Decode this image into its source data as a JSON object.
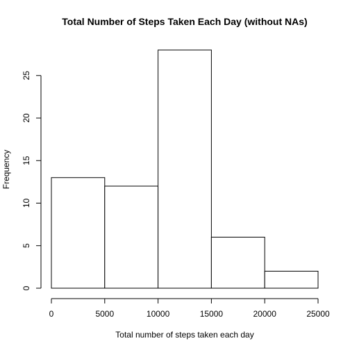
{
  "chart_data": {
    "type": "bar",
    "title": "Total Number of Steps Taken Each Day (without NAs)",
    "xlabel": "Total number of steps taken each day",
    "ylabel": "Frequency",
    "bins": [
      {
        "start": 0,
        "end": 5000,
        "count": 13
      },
      {
        "start": 5000,
        "end": 10000,
        "count": 12
      },
      {
        "start": 10000,
        "end": 15000,
        "count": 28
      },
      {
        "start": 15000,
        "end": 20000,
        "count": 6
      },
      {
        "start": 20000,
        "end": 25000,
        "count": 2
      }
    ],
    "xlim": [
      0,
      25000
    ],
    "ylim": [
      0,
      28
    ],
    "x_ticks": [
      0,
      5000,
      10000,
      15000,
      20000,
      25000
    ],
    "x_tick_labels": [
      "0",
      "5000",
      "10000",
      "15000",
      "20000",
      "25000"
    ],
    "y_ticks": [
      0,
      5,
      10,
      15,
      20,
      25
    ],
    "y_tick_labels": [
      "0",
      "5",
      "10",
      "15",
      "20",
      "25"
    ],
    "grid": false,
    "legend": "none"
  }
}
